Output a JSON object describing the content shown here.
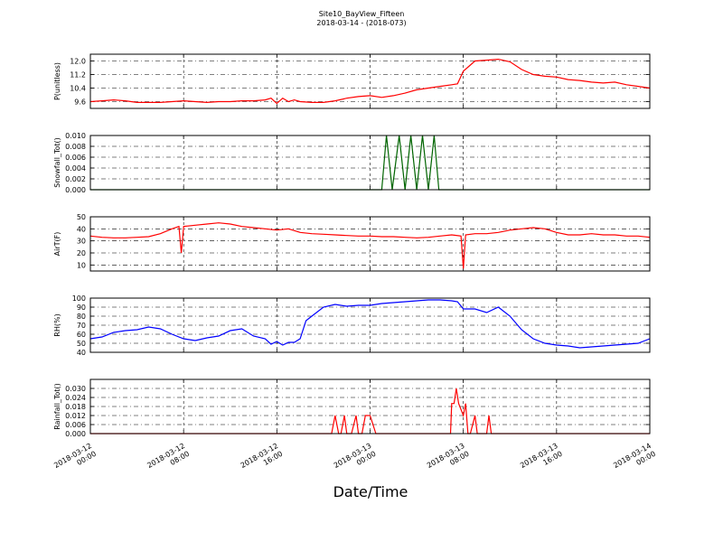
{
  "title": "Site10_BayView_Fifteen",
  "subtitle": "2018-03-14 - (2018-073)",
  "xlabel": "Date/Time",
  "x_ticks": [
    [
      "2018-03-12",
      "00:00"
    ],
    [
      "2018-03-12",
      "08:00"
    ],
    [
      "2018-03-12",
      "16:00"
    ],
    [
      "2018-03-13",
      "00:00"
    ],
    [
      "2018-03-13",
      "08:00"
    ],
    [
      "2018-03-13",
      "16:00"
    ],
    [
      "2018-03-14",
      "00:00"
    ]
  ],
  "colors": {
    "pressure": "#ff0000",
    "snowfall": "#006400",
    "airtemp": "#ff0000",
    "rh": "#0000ff",
    "rainfall": "#ff0000"
  },
  "chart_data": [
    {
      "type": "line",
      "ylabel": "P(unitless)",
      "ylim": [
        9.2,
        12.4
      ],
      "yticks": [
        "9.6",
        "10.4",
        "11.2",
        "12.0"
      ],
      "grid": true,
      "x_hours": [
        0,
        1,
        2,
        3,
        4,
        5,
        6,
        7,
        8,
        9,
        10,
        11,
        12,
        13,
        14,
        15,
        15.5,
        16,
        16.5,
        17,
        17.5,
        18,
        19,
        20,
        21,
        22,
        23,
        24,
        25,
        26,
        27,
        28,
        29,
        30,
        31,
        31.5,
        32,
        33,
        34,
        35,
        36,
        37,
        38,
        39,
        40,
        41,
        42,
        43,
        44,
        45,
        46,
        47,
        48
      ],
      "values": [
        9.6,
        9.65,
        9.7,
        9.65,
        9.55,
        9.55,
        9.55,
        9.6,
        9.65,
        9.6,
        9.55,
        9.6,
        9.6,
        9.65,
        9.65,
        9.7,
        9.8,
        9.5,
        9.8,
        9.6,
        9.7,
        9.6,
        9.55,
        9.55,
        9.65,
        9.8,
        9.9,
        9.95,
        9.85,
        9.95,
        10.1,
        10.3,
        10.4,
        10.5,
        10.6,
        10.65,
        11.4,
        12.0,
        12.05,
        12.1,
        11.95,
        11.5,
        11.2,
        11.1,
        11.05,
        10.9,
        10.85,
        10.75,
        10.7,
        10.75,
        10.6,
        10.5,
        10.4
      ]
    },
    {
      "type": "line",
      "ylabel": "Snowfall_Tot()",
      "ylim": [
        0.0,
        0.01
      ],
      "yticks": [
        "0.000",
        "0.002",
        "0.004",
        "0.006",
        "0.008",
        "0.010"
      ],
      "grid": true,
      "x_hours": [
        0,
        25,
        25.4,
        25.9,
        26.5,
        27,
        27.5,
        28,
        28.5,
        29,
        29.5,
        29.9,
        48
      ],
      "values": [
        0,
        0,
        0.01,
        0,
        0.01,
        0,
        0.01,
        0,
        0.01,
        0,
        0.01,
        0,
        0
      ]
    },
    {
      "type": "line",
      "ylabel": "AirT(F)",
      "ylim": [
        5,
        50
      ],
      "yticks": [
        "10",
        "20",
        "30",
        "40",
        "50"
      ],
      "grid": true,
      "x_hours": [
        0,
        1,
        2,
        3,
        4,
        5,
        6,
        7,
        7.6,
        7.8,
        8,
        9,
        10,
        11,
        12,
        13,
        14,
        15,
        16,
        17,
        18,
        19,
        20,
        21,
        22,
        23,
        24,
        25,
        26,
        27,
        28,
        29,
        30,
        31,
        31.8,
        32,
        32.2,
        33,
        34,
        35,
        36,
        37,
        38,
        39,
        40,
        41,
        42,
        43,
        44,
        45,
        46,
        47,
        48
      ],
      "values": [
        34,
        33,
        32.5,
        32.5,
        33,
        33.5,
        36,
        40,
        42,
        20,
        42,
        43,
        44,
        45,
        44,
        42,
        41,
        40,
        39,
        40,
        37,
        36,
        35.5,
        35,
        34.5,
        34,
        34,
        33.5,
        33.5,
        33,
        32.5,
        33,
        34,
        35,
        34,
        7,
        35,
        36,
        36,
        37,
        39,
        40,
        41,
        40,
        37,
        35,
        35,
        36,
        35,
        35,
        34,
        34,
        33
      ]
    },
    {
      "type": "line",
      "ylabel": "RH(%)",
      "ylim": [
        40,
        100
      ],
      "yticks": [
        "40",
        "50",
        "60",
        "70",
        "80",
        "90",
        "100"
      ],
      "grid": true,
      "x_hours": [
        0,
        1,
        2,
        3,
        4,
        5,
        6,
        7,
        8,
        9,
        10,
        11,
        12,
        13,
        14,
        15,
        15.5,
        16,
        16.5,
        17,
        17.5,
        18,
        18.5,
        19,
        20,
        21,
        22,
        23,
        24,
        25,
        26,
        27,
        28,
        29,
        30,
        31,
        31.5,
        32,
        33,
        34,
        35,
        36,
        37,
        38,
        39,
        40,
        41,
        42,
        43,
        44,
        45,
        46,
        47,
        48
      ],
      "values": [
        55,
        57,
        62,
        64,
        65,
        68,
        66,
        60,
        55,
        53,
        56,
        58,
        64,
        66,
        58,
        55,
        49,
        52,
        48,
        51,
        51,
        55,
        75,
        80,
        90,
        93,
        91,
        92,
        92,
        94,
        95,
        96,
        97,
        98,
        98,
        97,
        96,
        88,
        88,
        84,
        90,
        80,
        65,
        55,
        50,
        48,
        47,
        45,
        46,
        47,
        48,
        49,
        50,
        55
      ]
    },
    {
      "type": "line",
      "ylabel": "Rainfall_Tot()",
      "ylim": [
        0.0,
        0.036
      ],
      "yticks": [
        "0.000",
        "0.006",
        "0.012",
        "0.018",
        "0.024",
        "0.030"
      ],
      "grid": true,
      "x_hours": [
        0,
        20.7,
        21,
        21.3,
        21.5,
        21.8,
        22,
        22.4,
        22.8,
        23,
        23.3,
        23.6,
        24,
        24.5,
        30.9,
        31,
        31.2,
        31.4,
        31.6,
        32,
        32.2,
        32.4,
        32.6,
        33,
        33.2,
        33.4,
        34,
        34.2,
        34.4,
        48
      ],
      "values": [
        0,
        0,
        0.012,
        0,
        0,
        0.012,
        0,
        0,
        0.012,
        0,
        0,
        0.012,
        0.012,
        0,
        0,
        0.02,
        0.02,
        0.03,
        0.02,
        0.012,
        0.02,
        0,
        0,
        0.012,
        0,
        0,
        0,
        0.012,
        0,
        0
      ]
    }
  ]
}
